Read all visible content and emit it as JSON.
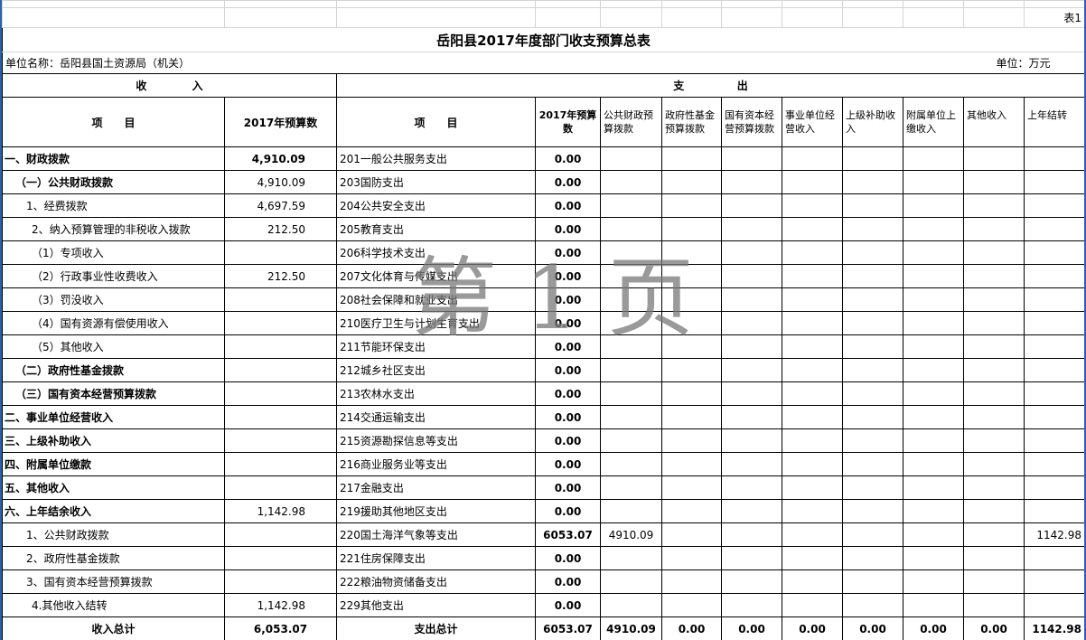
{
  "sheet_label": "表1",
  "title": "岳阳县2017年度部门收支预算总表",
  "unit_name": "单位名称：岳阳县国土资源局（机关）",
  "unit": "单位：万元",
  "watermark": "第 1 页",
  "table": {
    "group_headers": {
      "income": "收            入",
      "expense": "支              出"
    },
    "column_headers": [
      "项　　目",
      "2017年预算数",
      "项　　目",
      "2017年预算数",
      "公共财政预算拨款",
      "政府性基金预算拨款",
      "国有资本经营预算拨款",
      "事业单位经营收入",
      "上级补助收入",
      "附属单位上缴收入",
      "其他收入",
      "上年结转"
    ],
    "rows": [
      {
        "item": "一、财政拨款",
        "amount": "4,910.09",
        "expense_item": "201一般公共服务支出",
        "expense_total": "0.00"
      },
      {
        "item": "（一）公共财政拨款",
        "amount": "4,910.09",
        "expense_item": "203国防支出",
        "expense_total": "0.00"
      },
      {
        "item": "1、经费拨款",
        "amount": "4,697.59",
        "expense_item": "204公共安全支出",
        "expense_total": "0.00"
      },
      {
        "item": "2、纳入预算管理的非税收入拨款",
        "amount": "212.50",
        "expense_item": "205教育支出",
        "expense_total": "0.00"
      },
      {
        "item": "（1）专项收入",
        "expense_item": "206科学技术支出",
        "expense_total": "0.00"
      },
      {
        "item": "（2）行政事业性收费收入",
        "amount": "212.50",
        "expense_item": "207文化体育与传媒支出",
        "expense_total": "0.00"
      },
      {
        "item": "（3）罚没收入",
        "expense_item": "208社会保障和就业支出",
        "expense_total": "0.00"
      },
      {
        "item": "（4）国有资源有偿使用收入",
        "expense_item": "210医疗卫生与计划生育支出",
        "expense_total": "0.00"
      },
      {
        "item": "（5）其他收入",
        "expense_item": "211节能环保支出",
        "expense_total": "0.00"
      },
      {
        "item": "（二）政府性基金拨款",
        "expense_item": "212城乡社区支出",
        "expense_total": "0.00"
      },
      {
        "item": "（三）国有资本经营预算拨款",
        "expense_item": "213农林水支出",
        "expense_total": "0.00"
      },
      {
        "item": "二、事业单位经营收入",
        "expense_item": "214交通运输支出",
        "expense_total": "0.00"
      },
      {
        "item": "三、上级补助收入",
        "expense_item": "215资源勘探信息等支出",
        "expense_total": "0.00"
      },
      {
        "item": "四、附属单位缴款",
        "expense_item": "216商业服务业等支出",
        "expense_total": "0.00"
      },
      {
        "item": "五、其他收入",
        "expense_item": "217金融支出",
        "expense_total": "0.00"
      },
      {
        "item": "六、上年结余收入",
        "amount": "1,142.98",
        "expense_item": "219援助其他地区支出",
        "expense_total": "0.00"
      },
      {
        "item": "1、公共财政拨款",
        "expense_item": "220国土海洋气象等支出",
        "expense_total": "6053.07",
        "public_finance": "4910.09",
        "carryover": "1142.98"
      },
      {
        "item": "2、政府性基金拨款",
        "expense_item": "221住房保障支出",
        "expense_total": "0.00"
      },
      {
        "item": "3、国有资本经营预算拨款",
        "expense_item": "222粮油物资储备支出",
        "expense_total": "0.00"
      },
      {
        "item": "4.其他收入结转",
        "amount": "1,142.98",
        "expense_item": "229其他支出",
        "expense_total": "0.00"
      }
    ],
    "total": {
      "income_label": "收入总计",
      "income_amount": "6,053.07",
      "expense_label": "支出总计",
      "expense_total": "6053.07",
      "breakdown": [
        "4910.09",
        "0.00",
        "0.00",
        "0.00",
        "0.00",
        "0.00",
        "0.00",
        "1142.98"
      ]
    }
  }
}
